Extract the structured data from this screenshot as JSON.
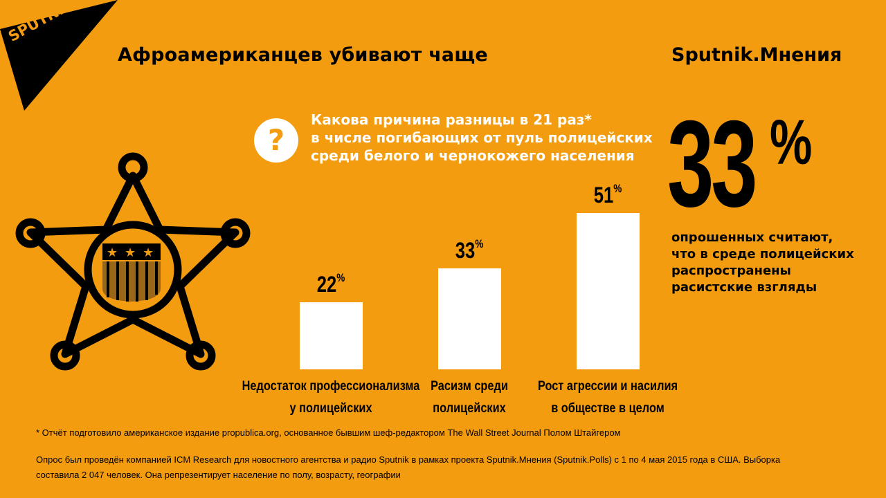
{
  "logo": {
    "text": "SPUTNIK"
  },
  "header": {
    "title": "Афроамериканцев убивают чаще",
    "brand": "Sputnik.Мнения"
  },
  "question": {
    "icon": "question-icon",
    "mark": "?",
    "lines": [
      "Какова причина разницы в 21 раз*",
      "в числе погибающих от пуль полицейских",
      "среди белого и чернокожего населения"
    ]
  },
  "highlight": {
    "value": "33",
    "percent": "%",
    "lines": [
      "опрошенных считают,",
      "что в среде полицейских",
      "распространены",
      "расистские взгляды"
    ]
  },
  "chart_data": {
    "type": "bar",
    "title": "Какова причина разницы в 21 раз* в числе погибающих от пуль полицейских среди белого и чернокожего населения",
    "categories": [
      "Недостаток профессионализма у полицейских",
      "Расизм среди полицейских",
      "Рост агрессии и насилия в обществе в целом"
    ],
    "category_lines": [
      [
        "Недостаток профессионализма",
        "у полицейских"
      ],
      [
        "Расизм среди",
        "полицейских"
      ],
      [
        "Рост агрессии и насилия",
        "в обществе в целом"
      ]
    ],
    "values": [
      22,
      33,
      51
    ],
    "value_labels": [
      "22",
      "33",
      "51"
    ],
    "unit": "%",
    "ylim": [
      0,
      51
    ],
    "grid": false,
    "bar_color": "#FFFFFF"
  },
  "footnote": "* Отчёт подготовило американское издание propublica.org, основанное бывшим шеф-редактором The Wall Street Journal Полом Штайгером",
  "survey": [
    "Опрос был проведён компанией ICM Research для новостного агентства и радио Sputnik в рамках проекта Sputnik.Мнения (Sputnik.Polls) с 1 по 4 мая 2015 года в США. Выборка",
    "составила 2 047 человек. Она репрезентирует население по полу, возрасту, географии"
  ],
  "colors": {
    "background": "#F39C0F",
    "foreground": "#000000",
    "bars": "#FFFFFF",
    "badge_stripes": "#8B5A14"
  },
  "badge": {
    "icon": "sheriff-star-icon"
  }
}
